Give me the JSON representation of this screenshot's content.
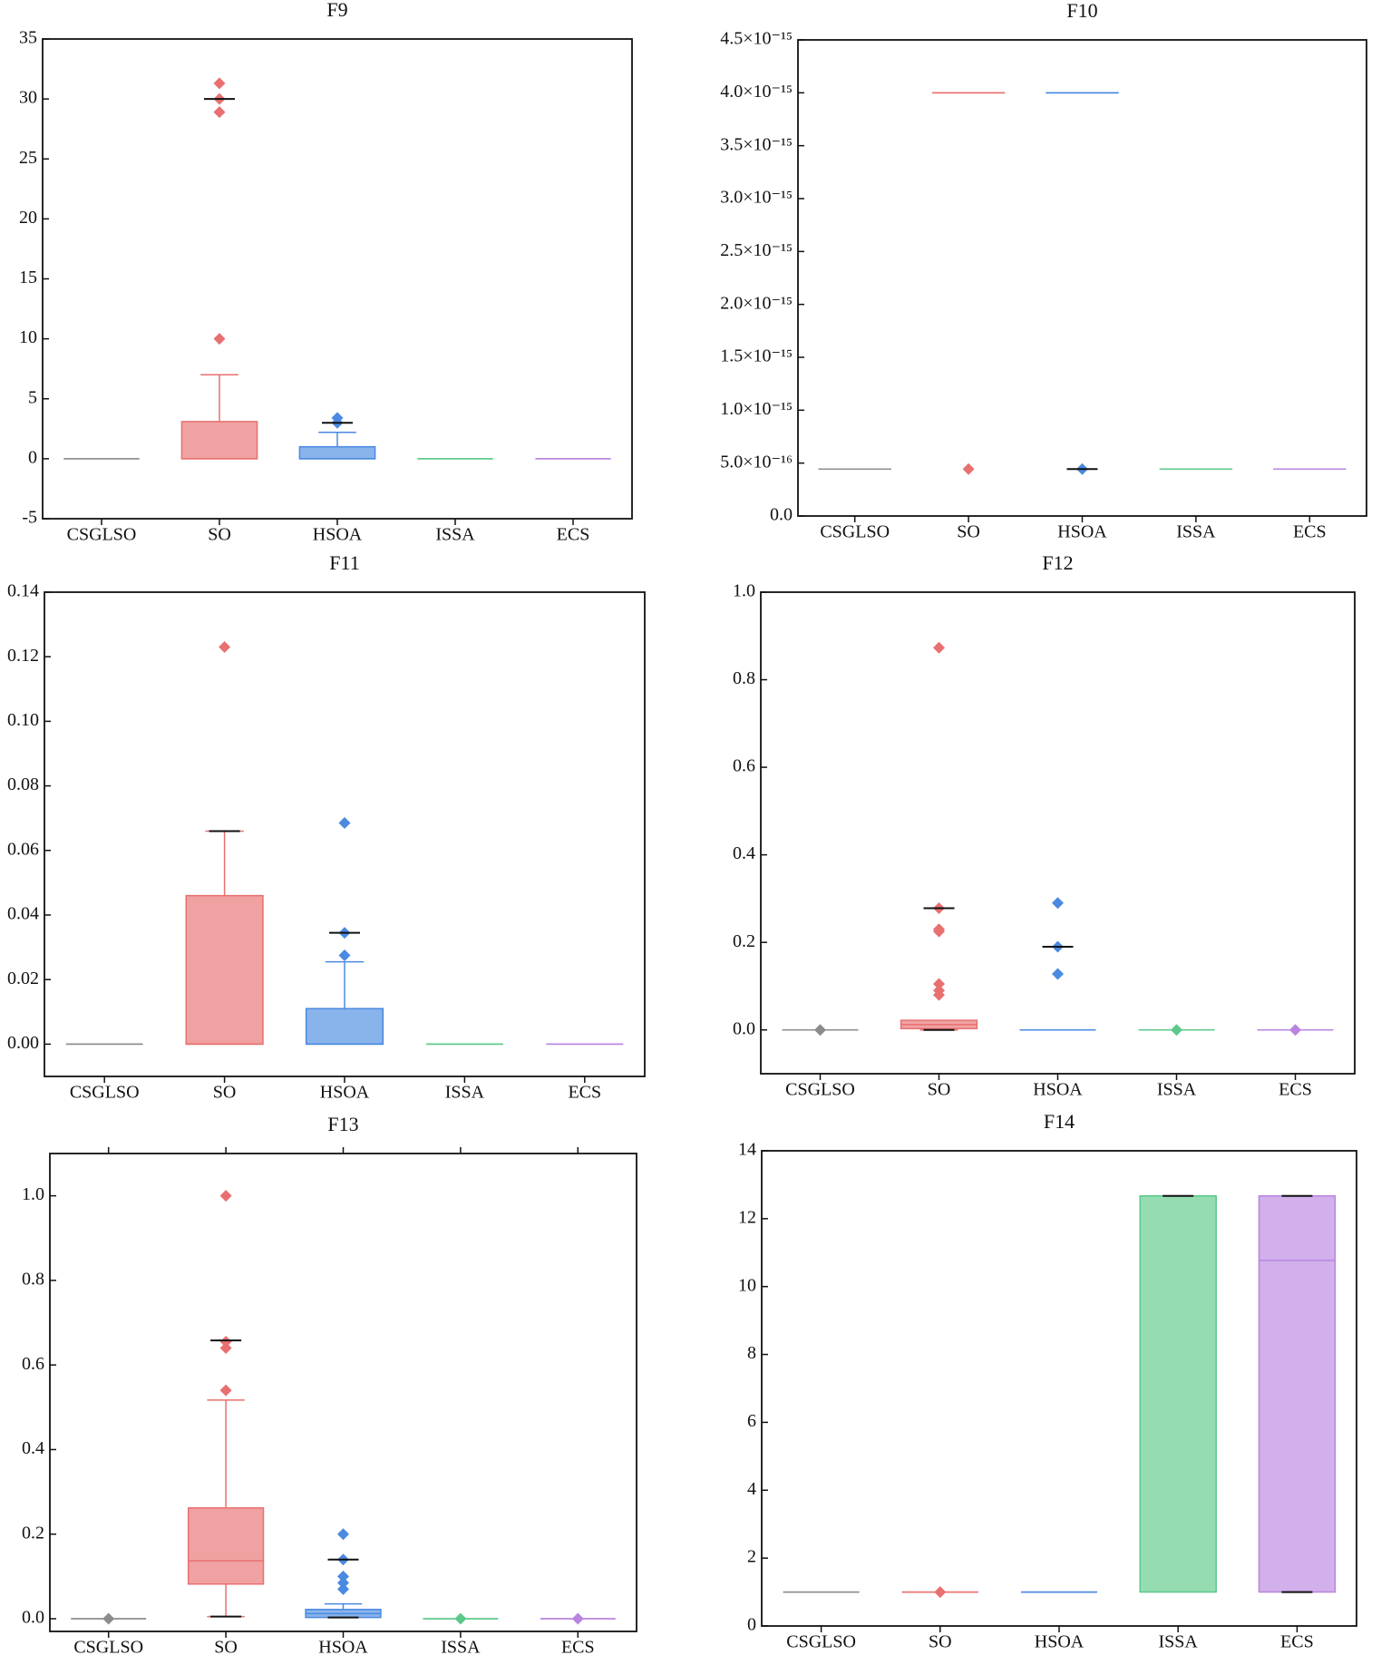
{
  "chart_data": [
    {
      "type": "box",
      "title": "F9",
      "categories": [
        "CSGLSO",
        "SO",
        "HSOA",
        "ISSA",
        "ECS"
      ],
      "colors": [
        "#8c8c8c",
        "#e87070",
        "#4a8ae0",
        "#5cc98a",
        "#b985e0"
      ],
      "ylim": [
        -5,
        35
      ],
      "yticks": [
        -5,
        0,
        5,
        10,
        15,
        20,
        25,
        30,
        35
      ],
      "boxes": [
        {
          "min": 0,
          "q1": 0,
          "median": 0,
          "q3": 0,
          "max": 0,
          "outliers": [],
          "dashes": []
        },
        {
          "min": 0,
          "q1": 0,
          "median": 0,
          "q3": 3.1,
          "max": 7,
          "outliers": [
            10,
            28.9,
            30,
            31.3
          ],
          "dashes": [
            30
          ]
        },
        {
          "min": 0,
          "q1": 0,
          "median": 0,
          "q3": 1,
          "max": 2.2,
          "outliers": [
            3,
            3.4
          ],
          "dashes": [
            3
          ]
        },
        {
          "min": 0,
          "q1": 0,
          "median": 0,
          "q3": 0,
          "max": 0,
          "outliers": [],
          "dashes": []
        },
        {
          "min": 0,
          "q1": 0,
          "median": 0,
          "q3": 0,
          "max": 0,
          "outliers": [],
          "dashes": []
        }
      ]
    },
    {
      "type": "box",
      "title": "F10",
      "categories": [
        "CSGLSO",
        "SO",
        "HSOA",
        "ISSA",
        "ECS"
      ],
      "colors": [
        "#8c8c8c",
        "#e87070",
        "#4a8ae0",
        "#5cc98a",
        "#b985e0"
      ],
      "ylim": [
        0,
        4.5e-15
      ],
      "yticks": [
        {
          "value": 0,
          "label": "0.0"
        },
        {
          "value": 5e-16,
          "label": "5.0×10⁻¹⁶"
        },
        {
          "value": 1e-15,
          "label": "1.0×10⁻¹⁵"
        },
        {
          "value": 1.5e-15,
          "label": "1.5×10⁻¹⁵"
        },
        {
          "value": 2e-15,
          "label": "2.0×10⁻¹⁵"
        },
        {
          "value": 2.5e-15,
          "label": "2.5×10⁻¹⁵"
        },
        {
          "value": 3e-15,
          "label": "3.0×10⁻¹⁵"
        },
        {
          "value": 3.5e-15,
          "label": "3.5×10⁻¹⁵"
        },
        {
          "value": 4e-15,
          "label": "4.0×10⁻¹⁵"
        },
        {
          "value": 4.5e-15,
          "label": "4.5×10⁻¹⁵"
        }
      ],
      "boxes": [
        {
          "min": 4.44e-16,
          "q1": 4.44e-16,
          "median": 4.44e-16,
          "q3": 4.44e-16,
          "max": 4.44e-16,
          "outliers": [],
          "dashes": []
        },
        {
          "min": 4e-15,
          "q1": 4e-15,
          "median": 4e-15,
          "q3": 4e-15,
          "max": 4e-15,
          "outliers": [
            4.44e-16
          ],
          "dashes": []
        },
        {
          "min": 4e-15,
          "q1": 4e-15,
          "median": 4e-15,
          "q3": 4e-15,
          "max": 4e-15,
          "outliers": [
            4.44e-16
          ],
          "dashes": [
            4.44e-16
          ]
        },
        {
          "min": 4.44e-16,
          "q1": 4.44e-16,
          "median": 4.44e-16,
          "q3": 4.44e-16,
          "max": 4.44e-16,
          "outliers": [],
          "dashes": []
        },
        {
          "min": 4.44e-16,
          "q1": 4.44e-16,
          "median": 4.44e-16,
          "q3": 4.44e-16,
          "max": 4.44e-16,
          "outliers": [],
          "dashes": []
        }
      ]
    },
    {
      "type": "box",
      "title": "F11",
      "categories": [
        "CSGLSO",
        "SO",
        "HSOA",
        "ISSA",
        "ECS"
      ],
      "colors": [
        "#8c8c8c",
        "#e87070",
        "#4a8ae0",
        "#5cc98a",
        "#b985e0"
      ],
      "ylim": [
        -0.01,
        0.14
      ],
      "yticks": [
        {
          "value": 0,
          "label": "0.00"
        },
        {
          "value": 0.02,
          "label": "0.02"
        },
        {
          "value": 0.04,
          "label": "0.04"
        },
        {
          "value": 0.06,
          "label": "0.06"
        },
        {
          "value": 0.08,
          "label": "0.08"
        },
        {
          "value": 0.1,
          "label": "0.10"
        },
        {
          "value": 0.12,
          "label": "0.12"
        },
        {
          "value": 0.14,
          "label": "0.14"
        }
      ],
      "boxes": [
        {
          "min": 0,
          "q1": 0,
          "median": 0,
          "q3": 0,
          "max": 0,
          "outliers": [],
          "dashes": []
        },
        {
          "min": 0,
          "q1": 0,
          "median": 0,
          "q3": 0.046,
          "max": 0.066,
          "outliers": [
            0.123
          ],
          "dashes": [
            0.066
          ]
        },
        {
          "min": 0,
          "q1": 0,
          "median": 0,
          "q3": 0.011,
          "max": 0.0255,
          "outliers": [
            0.0275,
            0.0345,
            0.0685
          ],
          "dashes": [
            0.0345
          ]
        },
        {
          "min": 0,
          "q1": 0,
          "median": 0,
          "q3": 0,
          "max": 0,
          "outliers": [],
          "dashes": []
        },
        {
          "min": 0,
          "q1": 0,
          "median": 0,
          "q3": 0,
          "max": 0,
          "outliers": [],
          "dashes": []
        }
      ]
    },
    {
      "type": "box",
      "title": "F12",
      "categories": [
        "CSGLSO",
        "SO",
        "HSOA",
        "ISSA",
        "ECS"
      ],
      "colors": [
        "#8c8c8c",
        "#e87070",
        "#4a8ae0",
        "#5cc98a",
        "#b985e0"
      ],
      "ylim": [
        -0.1,
        1.0
      ],
      "yticks": [
        {
          "value": 0,
          "label": "0.0"
        },
        0.2,
        0.4,
        0.6,
        0.8,
        {
          "value": 1,
          "label": "1.0"
        }
      ],
      "boxes": [
        {
          "min": 0,
          "q1": 0,
          "median": 0,
          "q3": 0,
          "max": 0,
          "outliers": [
            0
          ],
          "dashes": []
        },
        {
          "min": 0,
          "q1": 0.003,
          "median": 0.012,
          "q3": 0.022,
          "max": 0.022,
          "outliers": [
            0.08,
            0.09,
            0.105,
            0.225,
            0.23,
            0.278,
            0.873
          ],
          "dashes": [
            0.278,
            0
          ]
        },
        {
          "min": 0,
          "q1": 0,
          "median": 0,
          "q3": 0,
          "max": 0,
          "outliers": [
            0.128,
            0.19,
            0.29
          ],
          "dashes": [
            0.19
          ]
        },
        {
          "min": 0,
          "q1": 0,
          "median": 0,
          "q3": 0,
          "max": 0,
          "outliers": [
            0
          ],
          "dashes": []
        },
        {
          "min": 0,
          "q1": 0,
          "median": 0,
          "q3": 0,
          "max": 0,
          "outliers": [
            0
          ],
          "dashes": []
        }
      ]
    },
    {
      "type": "box",
      "title": "F13",
      "categories": [
        "CSGLSO",
        "SO",
        "HSOA",
        "ISSA",
        "ECS"
      ],
      "colors": [
        "#8c8c8c",
        "#e87070",
        "#4a8ae0",
        "#5cc98a",
        "#b985e0"
      ],
      "ylim": [
        -0.03,
        1.1
      ],
      "yticks": [
        {
          "value": 0,
          "label": "0.0"
        },
        0.2,
        0.4,
        0.6,
        0.8,
        {
          "value": 1,
          "label": "1.0"
        }
      ],
      "boxes": [
        {
          "min": 0,
          "q1": 0,
          "median": 0,
          "q3": 0,
          "max": 0,
          "outliers": [
            0
          ],
          "dashes": []
        },
        {
          "min": 0.005,
          "q1": 0.082,
          "median": 0.137,
          "q3": 0.262,
          "max": 0.517,
          "outliers": [
            0.54,
            0.64,
            0.655,
            1.0
          ],
          "dashes": [
            0.658,
            0.005
          ]
        },
        {
          "min": 0.003,
          "q1": 0.003,
          "median": 0.012,
          "q3": 0.022,
          "max": 0.035,
          "outliers": [
            0.07,
            0.085,
            0.1,
            0.14,
            0.2
          ],
          "dashes": [
            0.14,
            0.003
          ]
        },
        {
          "min": 0,
          "q1": 0,
          "median": 0,
          "q3": 0,
          "max": 0,
          "outliers": [
            0
          ],
          "dashes": []
        },
        {
          "min": 0,
          "q1": 0,
          "median": 0,
          "q3": 0,
          "max": 0,
          "outliers": [
            0
          ],
          "dashes": []
        }
      ]
    },
    {
      "type": "box",
      "title": "F14",
      "categories": [
        "CSGLSO",
        "SO",
        "HSOA",
        "ISSA",
        "ECS"
      ],
      "colors": [
        "#8c8c8c",
        "#e87070",
        "#4a8ae0",
        "#5cc98a",
        "#b985e0"
      ],
      "ylim": [
        0,
        14
      ],
      "yticks": [
        0,
        2,
        4,
        6,
        8,
        10,
        12,
        14
      ],
      "boxes": [
        {
          "min": 1,
          "q1": 1,
          "median": 1,
          "q3": 1,
          "max": 1,
          "outliers": [],
          "dashes": []
        },
        {
          "min": 1,
          "q1": 1,
          "median": 1,
          "q3": 1,
          "max": 1,
          "outliers": [
            1
          ],
          "dashes": []
        },
        {
          "min": 1,
          "q1": 1,
          "median": 1,
          "q3": 1,
          "max": 1,
          "outliers": [],
          "dashes": []
        },
        {
          "min": 1,
          "q1": 1,
          "median": 12.67,
          "q3": 12.67,
          "max": 12.67,
          "outliers": [],
          "dashes": [
            12.67
          ]
        },
        {
          "min": 1,
          "q1": 1,
          "median": 10.77,
          "q3": 12.67,
          "max": 12.67,
          "outliers": [],
          "dashes": [
            12.67,
            1
          ]
        }
      ]
    }
  ]
}
